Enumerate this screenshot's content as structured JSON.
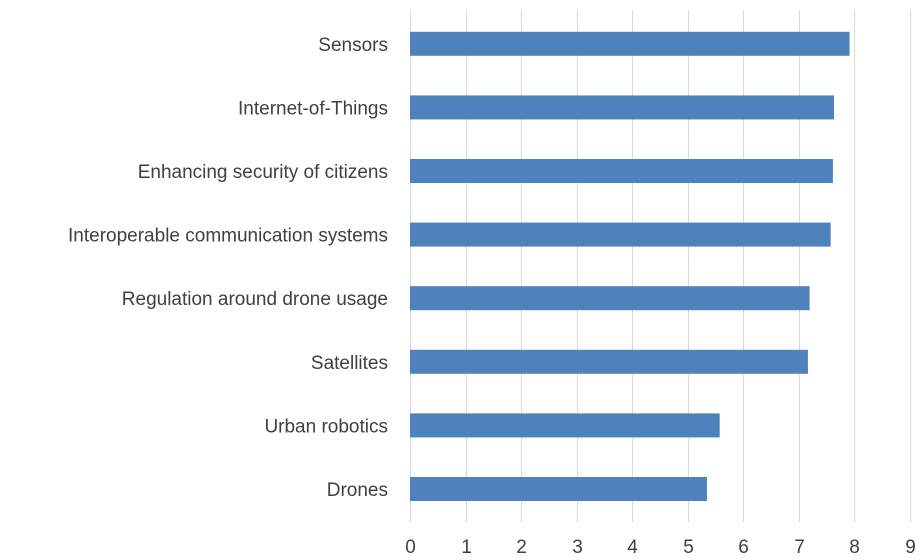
{
  "chart_data": {
    "type": "bar",
    "orientation": "horizontal",
    "categories": [
      "Sensors",
      "Internet-of-Things",
      "Enhancing security of citizens",
      "Interoperable communication systems",
      "Regulation around drone usage",
      "Satellites",
      "Urban robotics",
      "Drones"
    ],
    "values": [
      7.92,
      7.64,
      7.62,
      7.58,
      7.2,
      7.17,
      5.58,
      5.35
    ],
    "xlim": [
      0,
      9
    ],
    "xticks": [
      "0",
      "1",
      "2",
      "3",
      "4",
      "5",
      "6",
      "7",
      "8",
      "9"
    ],
    "bar_color": "#4f81bd",
    "grid": true,
    "title": "",
    "xlabel": "",
    "ylabel": ""
  }
}
